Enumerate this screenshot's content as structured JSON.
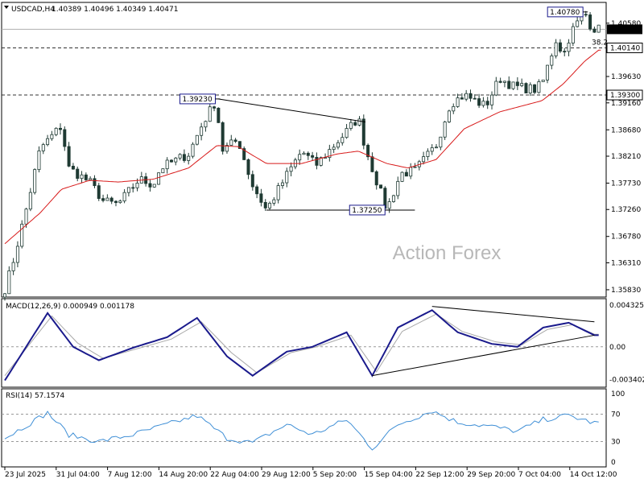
{
  "header": {
    "symbol": "USDCAD,H4",
    "ohlc": "1.40389 1.40496 1.40349 1.40471"
  },
  "watermark": "Action Forex",
  "colors": {
    "candle": "#1f3a33",
    "ma": "#d81a1a",
    "macd": "#1a1a8c",
    "signal": "#a8a8a8",
    "rsi": "#3f8fd6",
    "price_box": "#000000"
  },
  "chart_data": [
    {
      "type": "candlestick",
      "title": "USDCAD,H4",
      "y_ticks": [
        "1.40580",
        "1.39630",
        "1.39160",
        "1.38680",
        "1.38210",
        "1.37730",
        "1.37260",
        "1.36780",
        "1.36310",
        "1.35830"
      ],
      "current_price": "1.40471",
      "levels": [
        {
          "label": "1.40140",
          "value": 1.4014,
          "style": "dashed"
        },
        {
          "label": "1.39300",
          "value": 1.393,
          "style": "dashed"
        }
      ],
      "fib_label": "38.2",
      "annotations": [
        {
          "label": "1.40780",
          "value": 1.4078
        },
        {
          "label": "1.39230",
          "value": 1.3923
        },
        {
          "label": "1.37250",
          "value": 1.3725
        }
      ],
      "trendlines": [
        {
          "from": [
            "22 Aug 04:00",
            1.3923
          ],
          "to": [
            "12 Sep",
            1.3882
          ]
        },
        {
          "from": [
            "29 Aug",
            1.3725
          ],
          "to": [
            "19 Sep",
            1.3725
          ]
        }
      ],
      "ma_label": "",
      "x_ticks": [
        "23 Jul 2025",
        "31 Jul 04:00",
        "7 Aug 12:00",
        "14 Aug 20:00",
        "22 Aug 04:00",
        "29 Aug 12:00",
        "5 Sep 20:00",
        "15 Sep 04:00",
        "22 Sep 12:00",
        "29 Sep 20:00",
        "7 Oct 04:00",
        "14 Oct 12:00"
      ],
      "path_anchors": [
        [
          "23 Jul",
          1.3585
        ],
        [
          "24 Jul",
          1.3625
        ],
        [
          "26 Jul",
          1.3725
        ],
        [
          "28 Jul",
          1.3835
        ],
        [
          "31 Jul",
          1.3875
        ],
        [
          "1 Aug",
          1.38
        ],
        [
          "4 Aug",
          1.3775
        ],
        [
          "6 Aug",
          1.374
        ],
        [
          "8 Aug",
          1.3735
        ],
        [
          "11 Aug",
          1.378
        ],
        [
          "13 Aug",
          1.377
        ],
        [
          "14 Aug",
          1.38
        ],
        [
          "18 Aug",
          1.3825
        ],
        [
          "20 Aug",
          1.388
        ],
        [
          "22 Aug",
          1.3923
        ],
        [
          "22 Aug 12:00",
          1.383
        ],
        [
          "25 Aug",
          1.385
        ],
        [
          "27 Aug",
          1.377
        ],
        [
          "29 Aug",
          1.3725
        ],
        [
          "1 Sep",
          1.379
        ],
        [
          "3 Sep",
          1.383
        ],
        [
          "5 Sep",
          1.3805
        ],
        [
          "9 Sep",
          1.386
        ],
        [
          "11 Sep",
          1.389
        ],
        [
          "12 Sep",
          1.3835
        ],
        [
          "15 Sep",
          1.3725
        ],
        [
          "17 Sep",
          1.379
        ],
        [
          "19 Sep",
          1.3795
        ],
        [
          "22 Sep",
          1.384
        ],
        [
          "24 Sep",
          1.3915
        ],
        [
          "26 Sep",
          1.393
        ],
        [
          "29 Sep",
          1.391
        ],
        [
          "1 Oct",
          1.396
        ],
        [
          "3 Oct",
          1.3945
        ],
        [
          "6 Oct",
          1.394
        ],
        [
          "7 Oct",
          1.395
        ],
        [
          "9 Oct",
          1.403
        ],
        [
          "10 Oct",
          1.4
        ],
        [
          "11 Oct",
          1.404
        ],
        [
          "13 Oct",
          1.4078
        ],
        [
          "14 Oct",
          1.405
        ],
        [
          "15 Oct",
          1.4047
        ]
      ],
      "ma_anchors": [
        [
          "23 Jul",
          1.3665
        ],
        [
          "28 Jul",
          1.372
        ],
        [
          "31 Jul",
          1.3762
        ],
        [
          "4 Aug",
          1.3778
        ],
        [
          "8 Aug",
          1.3775
        ],
        [
          "13 Aug",
          1.378
        ],
        [
          "18 Aug",
          1.38
        ],
        [
          "22 Aug",
          1.384
        ],
        [
          "25 Aug",
          1.3838
        ],
        [
          "29 Aug",
          1.3808
        ],
        [
          "3 Sep",
          1.3808
        ],
        [
          "8 Sep",
          1.3825
        ],
        [
          "11 Sep",
          1.383
        ],
        [
          "15 Sep",
          1.3808
        ],
        [
          "18 Sep",
          1.38
        ],
        [
          "22 Sep",
          1.3815
        ],
        [
          "26 Sep",
          1.387
        ],
        [
          "1 Oct",
          1.39
        ],
        [
          "7 Oct",
          1.392
        ],
        [
          "10 Oct",
          1.395
        ],
        [
          "13 Oct",
          1.399
        ],
        [
          "15 Oct",
          1.401
        ]
      ]
    },
    {
      "type": "line",
      "title": "MACD(12,26,9) 0.000949 0.001178",
      "y_ticks": [
        "0.004325",
        "0.00",
        "-0.003402"
      ],
      "series": [
        {
          "name": "MACD",
          "anchors": [
            [
              0,
              -0.0035
            ],
            [
              10,
              0.0035
            ],
            [
              16,
              0.0
            ],
            [
              22,
              -0.0014
            ],
            [
              30,
              -0.0001
            ],
            [
              38,
              0.001
            ],
            [
              45,
              0.003
            ],
            [
              52,
              -0.001
            ],
            [
              58,
              -0.003
            ],
            [
              66,
              -0.0005
            ],
            [
              72,
              0.0
            ],
            [
              80,
              0.0015
            ],
            [
              86,
              -0.003
            ],
            [
              92,
              0.002
            ],
            [
              100,
              0.0038
            ],
            [
              106,
              0.0015
            ],
            [
              114,
              0.0003
            ],
            [
              120,
              0.0
            ],
            [
              126,
              0.002
            ],
            [
              132,
              0.0025
            ],
            [
              138,
              0.0012
            ]
          ]
        },
        {
          "name": "Signal",
          "anchors": [
            [
              0,
              -0.003
            ],
            [
              11,
              0.0032
            ],
            [
              17,
              0.0004
            ],
            [
              23,
              -0.0012
            ],
            [
              31,
              -0.0002
            ],
            [
              39,
              0.0008
            ],
            [
              46,
              0.0026
            ],
            [
              53,
              -0.0006
            ],
            [
              59,
              -0.0027
            ],
            [
              67,
              -0.0006
            ],
            [
              73,
              0.0
            ],
            [
              81,
              0.0012
            ],
            [
              87,
              -0.0026
            ],
            [
              93,
              0.0016
            ],
            [
              101,
              0.0034
            ],
            [
              107,
              0.0016
            ],
            [
              115,
              0.0005
            ],
            [
              121,
              0.0002
            ],
            [
              127,
              0.0018
            ],
            [
              133,
              0.0023
            ],
            [
              138,
              0.0013
            ]
          ]
        }
      ],
      "trendlines": [
        {
          "from": [
            100,
            0.0042
          ],
          "to": [
            138,
            0.0026
          ]
        },
        {
          "from": [
            86,
            -0.003
          ],
          "to": [
            138,
            0.0012
          ]
        }
      ]
    },
    {
      "type": "line",
      "title": "RSI(14) 57.1574",
      "y_ticks": [
        "100",
        "70",
        "30",
        "0"
      ],
      "levels": [
        70,
        30
      ],
      "series": [
        {
          "name": "RSI",
          "anchors": [
            [
              0,
              35
            ],
            [
              10,
              72
            ],
            [
              15,
              40
            ],
            [
              22,
              30
            ],
            [
              30,
              40
            ],
            [
              38,
              55
            ],
            [
              45,
              68
            ],
            [
              52,
              35
            ],
            [
              58,
              28
            ],
            [
              66,
              55
            ],
            [
              72,
              40
            ],
            [
              80,
              62
            ],
            [
              86,
              20
            ],
            [
              92,
              55
            ],
            [
              100,
              75
            ],
            [
              106,
              58
            ],
            [
              114,
              52
            ],
            [
              120,
              45
            ],
            [
              126,
              62
            ],
            [
              132,
              68
            ],
            [
              138,
              57
            ]
          ]
        }
      ]
    }
  ]
}
